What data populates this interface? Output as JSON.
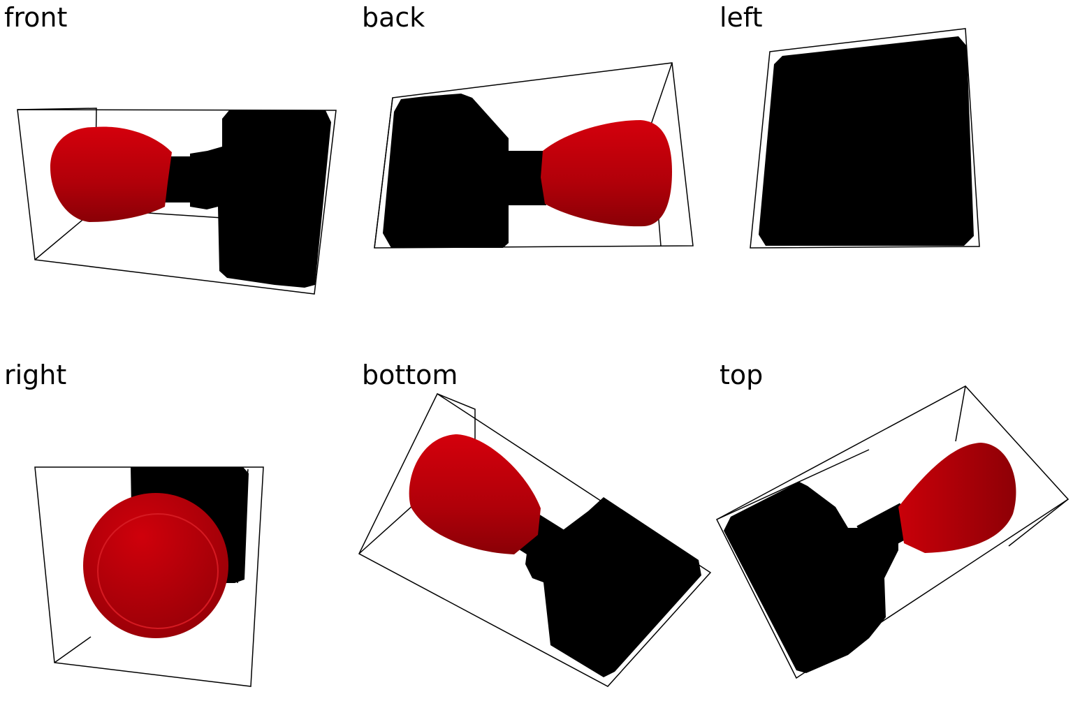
{
  "views": {
    "front": {
      "label": "front"
    },
    "back": {
      "label": "back"
    },
    "left": {
      "label": "left"
    },
    "right": {
      "label": "right"
    },
    "bottom": {
      "label": "bottom"
    },
    "top": {
      "label": "top"
    }
  },
  "colors": {
    "body": "#000000",
    "head": "#b5000a",
    "head_dark": "#8e0007",
    "edge": "#000000",
    "background": "#ffffff"
  }
}
